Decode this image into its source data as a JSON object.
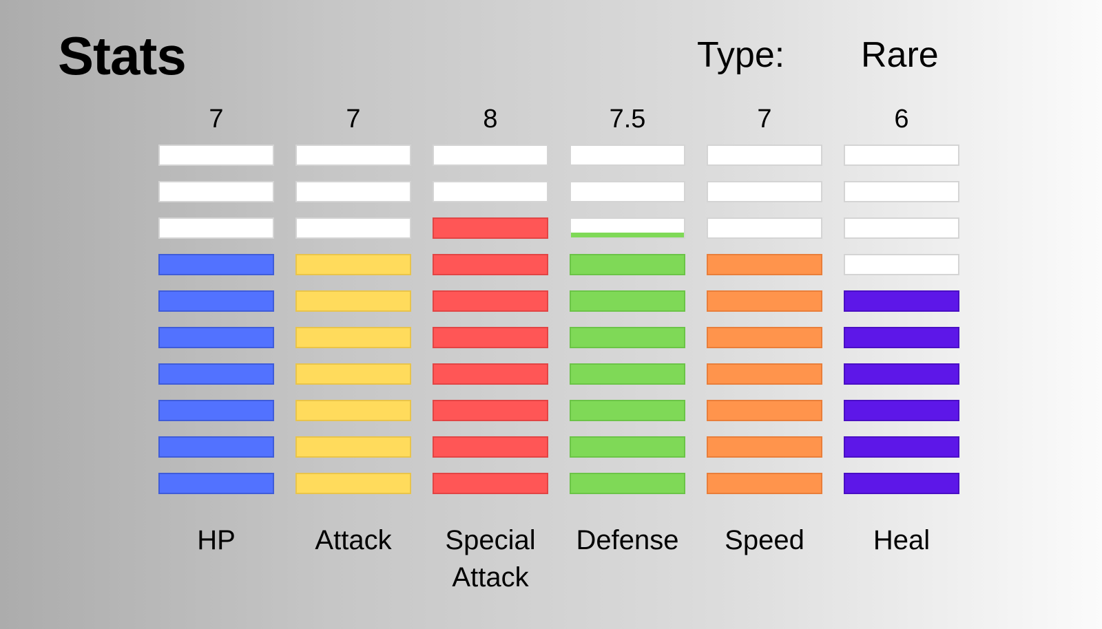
{
  "header": {
    "title": "Stats",
    "type_label": "Type:",
    "type_value": "Rare"
  },
  "max_segments": 10,
  "stats": [
    {
      "name": "HP",
      "value": "7",
      "level": 7,
      "color": "#5272ff",
      "border": "#3f5cd9"
    },
    {
      "name": "Attack",
      "value": "7",
      "level": 7,
      "color": "#ffdb5c",
      "border": "#e9c44a"
    },
    {
      "name": "Special Attack",
      "value": "8",
      "level": 8,
      "color": "#ff5656",
      "border": "#e24444"
    },
    {
      "name": "Defense",
      "value": "7.5",
      "level": 7.5,
      "color": "#7fd957",
      "border": "#6bc447"
    },
    {
      "name": "Speed",
      "value": "7",
      "level": 7,
      "color": "#ff944c",
      "border": "#e97e3a"
    },
    {
      "name": "Heal",
      "value": "6",
      "level": 6,
      "color": "#5d17e8",
      "border": "#4a0fc4"
    }
  ]
}
